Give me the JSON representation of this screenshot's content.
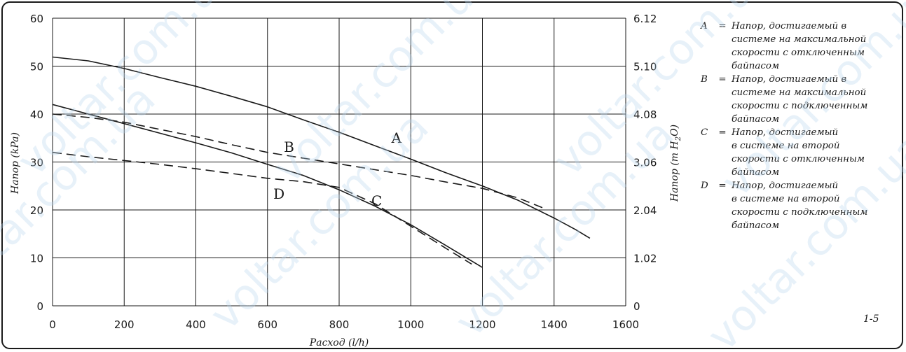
{
  "chart_data": {
    "type": "line",
    "xlabel": "Расход (l/h)",
    "ylabel": "Напор (kPa)",
    "y2label_parts": [
      "Напор (m H",
      "2",
      "O)"
    ],
    "xlim": [
      0,
      1600
    ],
    "ylim": [
      0,
      60
    ],
    "x_ticks": [
      "0",
      "200",
      "400",
      "600",
      "800",
      "1000",
      "1200",
      "1400",
      "1600"
    ],
    "y_ticks": [
      "0",
      "10",
      "20",
      "30",
      "40",
      "50",
      "60"
    ],
    "y2_ticks": [
      "0",
      "1.02",
      "2.04",
      "3.06",
      "4.08",
      "5.10",
      "6.12"
    ],
    "grid": true,
    "series": [
      {
        "name": "A",
        "style": "solid",
        "label_at": [
          960,
          34
        ],
        "points": [
          [
            0,
            51.9
          ],
          [
            100,
            51.1
          ],
          [
            200,
            49.5
          ],
          [
            300,
            47.6
          ],
          [
            400,
            45.8
          ],
          [
            500,
            43.7
          ],
          [
            600,
            41.5
          ],
          [
            700,
            38.8
          ],
          [
            800,
            36.2
          ],
          [
            900,
            33.4
          ],
          [
            1000,
            30.6
          ],
          [
            1100,
            27.7
          ],
          [
            1200,
            25.0
          ],
          [
            1300,
            22.0
          ],
          [
            1400,
            18.3
          ],
          [
            1460,
            15.9
          ],
          [
            1500,
            14.1
          ]
        ]
      },
      {
        "name": "B",
        "style": "dashed",
        "label_at": [
          660,
          32.1
        ],
        "points": [
          [
            0,
            40.0
          ],
          [
            100,
            39.3
          ],
          [
            200,
            38.3
          ],
          [
            300,
            36.8
          ],
          [
            400,
            35.3
          ],
          [
            500,
            33.6
          ],
          [
            600,
            32.0
          ],
          [
            700,
            30.8
          ],
          [
            800,
            29.6
          ],
          [
            900,
            28.4
          ],
          [
            1000,
            27.2
          ],
          [
            1100,
            25.8
          ],
          [
            1200,
            24.5
          ],
          [
            1300,
            22.5
          ],
          [
            1370,
            20.4
          ]
        ]
      },
      {
        "name": "C",
        "style": "solid",
        "label_at": [
          905,
          20.9
        ],
        "points": [
          [
            0,
            42.0
          ],
          [
            100,
            40.0
          ],
          [
            200,
            38.0
          ],
          [
            300,
            36.0
          ],
          [
            400,
            34.0
          ],
          [
            500,
            31.9
          ],
          [
            600,
            29.5
          ],
          [
            700,
            27.2
          ],
          [
            800,
            24.2
          ],
          [
            900,
            20.8
          ],
          [
            1000,
            16.9
          ],
          [
            1100,
            12.5
          ],
          [
            1200,
            8.0
          ]
        ]
      },
      {
        "name": "D",
        "style": "dashed",
        "label_at": [
          632,
          22.3
        ],
        "points": [
          [
            0,
            32.0
          ],
          [
            100,
            31.1
          ],
          [
            200,
            30.3
          ],
          [
            300,
            29.5
          ],
          [
            400,
            28.6
          ],
          [
            500,
            27.6
          ],
          [
            600,
            26.6
          ],
          [
            700,
            25.9
          ],
          [
            800,
            24.7
          ],
          [
            900,
            21.3
          ],
          [
            1000,
            16.6
          ],
          [
            1100,
            11.9
          ],
          [
            1170,
            8.7
          ]
        ]
      }
    ]
  },
  "legend": {
    "items": [
      {
        "letter": "A",
        "eq": "=",
        "text": "Напор, достигаемый в\nсистеме на максимальной\nскорости с отключенным\nбайпасом"
      },
      {
        "letter": "B",
        "eq": "=",
        "text": "Напор, достигаемый в\nсистеме на максимальной\nскорости с подключенным\nбайпасом"
      },
      {
        "letter": "C",
        "eq": "=",
        "text": "Напор, достигаемый\nв системе на второй\nскорости с отключенным\nбайпасом"
      },
      {
        "letter": "D",
        "eq": "=",
        "text": "Напор, достигаемый\nв системе на второй\nскорости с подключенным\nбайпасом"
      }
    ]
  },
  "figure_number": "1-5",
  "watermark": {
    "text": "voltar.com.ua",
    "color": "#b9d6ee"
  },
  "colors": {
    "line": "#1a1a1a",
    "grid": "#1a1a1a"
  }
}
